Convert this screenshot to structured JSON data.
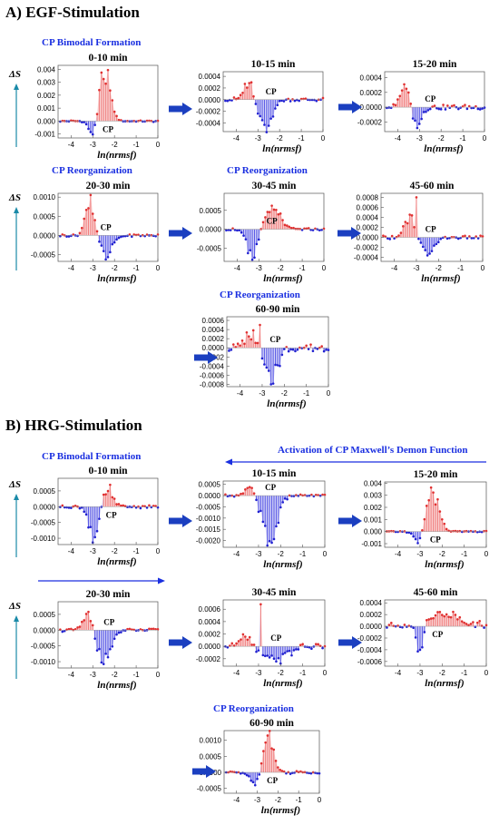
{
  "sections": [
    {
      "id": "egf",
      "title": "A) EGF-Stimulation"
    },
    {
      "id": "hrg",
      "title": "B) HRG-Stimulation"
    }
  ],
  "annotations": {
    "bimodal": "CP Bimodal Formation",
    "reorg": "CP  Reorganization",
    "maxwell": "Activation of CP Maxwell’s Demon Function",
    "delta_s": "ΔS",
    "x_axis": "ln(nrmsf)",
    "cp": "CP"
  },
  "colors": {
    "pos": "#f08080",
    "pos_fill": "#f6b3b3",
    "neg": "#5a5ae6",
    "neg_fill": "#b8b8f2",
    "accent": "#1a2fe0",
    "arrow": "#1b3fc0",
    "ds_arrow": "#1a8aa8"
  },
  "chart_data": [
    {
      "id": "egf-0-10",
      "type": "bar",
      "title": "0-10 min",
      "xlabel": "ln(nrmsf)",
      "ylabel": "ΔS",
      "xlim": [
        -4.6,
        0
      ],
      "ylim": [
        -0.0013,
        0.0043
      ],
      "yticks": [
        "-0.001",
        "0.000",
        "0.001",
        "0.002",
        "0.003",
        "0.004"
      ],
      "ytick_values": [
        -0.001,
        0,
        0.001,
        0.002,
        0.003,
        0.004
      ],
      "xticks": [
        "-4",
        "-3",
        "-2",
        "-1",
        "0"
      ],
      "profile": {
        "type": "bipolar",
        "neg_center": -3.0,
        "neg_amp": -0.0011,
        "neg_w": 0.25,
        "pos_center": -2.45,
        "pos_amp": 0.0037,
        "pos_w": 0.35,
        "tail": 5e-05
      },
      "cp_x": -2.8
    },
    {
      "id": "egf-10-15",
      "type": "bar",
      "title": "10-15 min",
      "xlabel": "ln(nrmsf)",
      "ylim": [
        -0.00055,
        0.00048
      ],
      "yticks": [
        "-0.0004",
        "-0.0002",
        "0.0000",
        "0.0002",
        "0.0004"
      ],
      "ytick_values": [
        -0.0004,
        -0.0002,
        0,
        0.0002,
        0.0004
      ],
      "xticks": [
        "-4",
        "-3",
        "-2",
        "-1",
        "0"
      ],
      "profile": {
        "type": "bipolar",
        "pos_center": -3.4,
        "pos_amp": 0.00035,
        "pos_w": 0.3,
        "neg_center": -2.7,
        "neg_amp": -0.0005,
        "neg_w": 0.45,
        "tail": 3e-05
      },
      "cp_x": -2.9
    },
    {
      "id": "egf-15-20",
      "type": "bar",
      "title": "15-20 min",
      "xlabel": "ln(nrmsf)",
      "ylim": [
        -0.00033,
        0.00048
      ],
      "yticks": [
        "-0.0002",
        "0.0000",
        "0.0002",
        "0.0004"
      ],
      "ytick_values": [
        -0.0002,
        0,
        0.0002,
        0.0004
      ],
      "xticks": [
        "-4",
        "-3",
        "-2",
        "-1",
        "0"
      ],
      "profile": {
        "type": "bipolar",
        "pos_center": -3.6,
        "pos_amp": 0.0004,
        "pos_w": 0.3,
        "neg_center": -3.2,
        "neg_amp": -0.0003,
        "neg_w": 0.35,
        "tail": 3e-05
      },
      "cp_x": -3.0
    },
    {
      "id": "egf-20-30",
      "type": "bar",
      "title": "20-30 min",
      "xlabel": "ln(nrmsf)",
      "ylim": [
        -0.00068,
        0.0011
      ],
      "yticks": [
        "-0.0005",
        "0.0000",
        "0.0005",
        "0.0010"
      ],
      "ytick_values": [
        -0.0005,
        0,
        0.0005,
        0.001
      ],
      "xticks": [
        "-4",
        "-3",
        "-2",
        "-1",
        "0"
      ],
      "profile": {
        "type": "bipolar",
        "pos_center": -3.1,
        "pos_amp": 0.0009,
        "pos_w": 0.3,
        "neg_center": -2.4,
        "neg_amp": -0.0005,
        "neg_w": 0.45,
        "tail": 3e-05
      },
      "cp_x": -2.9
    },
    {
      "id": "egf-30-45",
      "type": "bar",
      "title": "30-45 min",
      "xlabel": "ln(nrmsf)",
      "ylim": [
        -0.00085,
        0.00095
      ],
      "yticks": [
        "-0.0005",
        "0.0000",
        "0.0005"
      ],
      "ytick_values": [
        -0.0005,
        0,
        0.0005
      ],
      "xticks": [
        "-4",
        "-3",
        "-2",
        "-1",
        "0"
      ],
      "profile": {
        "type": "bipolar",
        "neg_center": -3.3,
        "neg_amp": -0.0008,
        "neg_w": 0.35,
        "pos_center": -2.4,
        "pos_amp": 0.0006,
        "pos_w": 0.5,
        "tail": 3e-05
      },
      "cp_x": -2.9
    },
    {
      "id": "egf-45-60",
      "type": "bar",
      "title": "45-60 min",
      "xlabel": "ln(nrmsf)",
      "ylim": [
        -0.00048,
        0.00088
      ],
      "yticks": [
        "-0.0004",
        "-0.0002",
        "0.0000",
        "0.0002",
        "0.0004",
        "0.0006",
        "0.0008"
      ],
      "ytick_values": [
        -0.0004,
        -0.0002,
        0,
        0.0002,
        0.0004,
        0.0006,
        0.0008
      ],
      "xticks": [
        "-4",
        "-3",
        "-2",
        "-1",
        "0"
      ],
      "profile": {
        "type": "bipolar",
        "pos_center": -3.3,
        "pos_amp": 0.0004,
        "pos_w": 0.35,
        "neg_center": -2.5,
        "neg_amp": -0.0003,
        "neg_w": 0.45,
        "tail": 3e-05,
        "spike_x": -3.0,
        "spike": 0.0008
      },
      "cp_x": -2.85
    },
    {
      "id": "egf-60-90",
      "type": "bar",
      "title": "60-90 min",
      "xlabel": "ln(nrmsf)",
      "ylim": [
        -0.00085,
        0.00068
      ],
      "yticks": [
        "-0.0008",
        "-0.0006",
        "-0.0004",
        "-0.0002",
        "0.0000",
        "0.0002",
        "0.0004",
        "0.0006"
      ],
      "ytick_values": [
        -0.0008,
        -0.0006,
        -0.0004,
        -0.0002,
        0,
        0.0002,
        0.0004,
        0.0006
      ],
      "xticks": [
        "-4",
        "-3",
        "-2",
        "-1",
        "0"
      ],
      "profile": {
        "type": "bipolar",
        "pos_center": -3.5,
        "pos_amp": 0.0003,
        "pos_w": 0.4,
        "neg_center": -2.6,
        "neg_amp": -0.0007,
        "neg_w": 0.4,
        "tail": 8e-05,
        "spike_x": -3.1,
        "spike": 0.0005
      },
      "cp_x": -2.9
    },
    {
      "id": "hrg-0-10",
      "type": "bar",
      "title": "0-10 min",
      "xlabel": "ln(nrmsf)",
      "ylim": [
        -0.0012,
        0.0009
      ],
      "yticks": [
        "-0.0010",
        "-0.0005",
        "0.0000",
        "0.0005"
      ],
      "ytick_values": [
        -0.001,
        -0.0005,
        0,
        0.0005
      ],
      "xticks": [
        "-4",
        "-3",
        "-2",
        "-1",
        "0"
      ],
      "profile": {
        "type": "bipolar",
        "neg_center": -2.95,
        "neg_amp": -0.001,
        "neg_w": 0.3,
        "pos_center": -2.3,
        "pos_amp": 0.0006,
        "pos_w": 0.3,
        "tail": 4e-05
      },
      "cp_x": -2.65
    },
    {
      "id": "hrg-10-15",
      "type": "bar",
      "title": "10-15 min",
      "xlabel": "ln(nrmsf)",
      "ylim": [
        -0.0023,
        0.00065
      ],
      "yticks": [
        "-0.0020",
        "-0.0015",
        "-0.0010",
        "-0.0005",
        "0.0000",
        "0.0005"
      ],
      "ytick_values": [
        -0.002,
        -0.0015,
        -0.001,
        -0.0005,
        0,
        0.0005
      ],
      "xticks": [
        "-4",
        "-3",
        "-2",
        "-1",
        "0"
      ],
      "profile": {
        "type": "bipolar",
        "pos_center": -3.4,
        "pos_amp": 0.0004,
        "pos_w": 0.3,
        "neg_center": -2.5,
        "neg_amp": -0.0021,
        "neg_w": 0.45,
        "tail": 5e-05
      },
      "cp_x": -2.95
    },
    {
      "id": "hrg-15-20",
      "type": "bar",
      "title": "15-20 min",
      "xlabel": "ln(nrmsf)",
      "ylim": [
        -0.0013,
        0.0041
      ],
      "yticks": [
        "-0.001",
        "0.000",
        "0.001",
        "0.002",
        "0.003",
        "0.004"
      ],
      "ytick_values": [
        -0.001,
        0,
        0.001,
        0.002,
        0.003,
        0.004
      ],
      "xticks": [
        "-4",
        "-3",
        "-2",
        "-1",
        "0"
      ],
      "profile": {
        "type": "bipolar",
        "neg_center": -3.0,
        "neg_amp": -0.0011,
        "neg_w": 0.3,
        "pos_center": -2.45,
        "pos_amp": 0.0037,
        "pos_w": 0.4,
        "tail": 5e-05
      },
      "cp_x": -2.8
    },
    {
      "id": "hrg-20-30",
      "type": "bar",
      "title": "20-30 min",
      "xlabel": "ln(nrmsf)",
      "ylim": [
        -0.0012,
        0.0009
      ],
      "yticks": [
        "-0.0010",
        "-0.0005",
        "0.0000",
        "0.0005"
      ],
      "ytick_values": [
        -0.001,
        -0.0005,
        0,
        0.0005
      ],
      "xticks": [
        "-4",
        "-3",
        "-2",
        "-1",
        "0"
      ],
      "profile": {
        "type": "bipolar",
        "pos_center": -3.2,
        "pos_amp": 0.0006,
        "pos_w": 0.3,
        "neg_center": -2.5,
        "neg_amp": -0.001,
        "neg_w": 0.45,
        "tail": 4e-05
      },
      "cp_x": -2.75
    },
    {
      "id": "hrg-30-45",
      "type": "bar",
      "title": "30-45 min",
      "xlabel": "ln(nrmsf)",
      "ylim": [
        -0.00032,
        0.00075
      ],
      "yticks": [
        "-0.0002",
        "0.0000",
        "0.0002",
        "0.0004",
        "0.0006"
      ],
      "ytick_values": [
        -0.0002,
        0,
        0.0002,
        0.0004,
        0.0006
      ],
      "xticks": [
        "-4",
        "-3",
        "-2",
        "-1",
        "0"
      ],
      "profile": {
        "type": "bipolar",
        "pos_center": -3.6,
        "pos_amp": 0.0002,
        "pos_w": 0.4,
        "neg_center": -2.3,
        "neg_amp": -0.0002,
        "neg_w": 0.8,
        "tail": 5e-05,
        "spike_x": -2.9,
        "spike": 0.00068
      },
      "cp_x": -2.7
    },
    {
      "id": "hrg-45-60",
      "type": "bar",
      "title": "45-60 min",
      "xlabel": "ln(nrmsf)",
      "ylim": [
        -0.00068,
        0.00045
      ],
      "yticks": [
        "-0.0006",
        "-0.0004",
        "-0.0002",
        "0.0000",
        "0.0002",
        "0.0004"
      ],
      "ytick_values": [
        -0.0006,
        -0.0004,
        -0.0002,
        0,
        0.0002,
        0.0004
      ],
      "xticks": [
        "-4",
        "-3",
        "-2",
        "-1",
        "0"
      ],
      "profile": {
        "type": "bipolar",
        "neg_center": -3.0,
        "neg_amp": -0.0006,
        "neg_w": 0.2,
        "pos_center": -2.0,
        "pos_amp": 0.0002,
        "pos_w": 1.2,
        "tail": 5e-05
      },
      "cp_x": -2.7
    },
    {
      "id": "hrg-60-90",
      "type": "bar",
      "title": "60-90 min",
      "xlabel": "ln(nrmsf)",
      "ylim": [
        -0.00065,
        0.0013
      ],
      "yticks": [
        "-0.0005",
        "0.0000",
        "0.0005",
        "0.0010"
      ],
      "ytick_values": [
        -0.0005,
        0,
        0.0005,
        0.001
      ],
      "xticks": [
        "-4",
        "-3",
        "-2",
        "-1",
        "0"
      ],
      "profile": {
        "type": "bipolar",
        "neg_center": -3.1,
        "neg_amp": -0.0004,
        "neg_w": 0.3,
        "pos_center": -2.45,
        "pos_amp": 0.0011,
        "pos_w": 0.35,
        "tail": 4e-05
      },
      "cp_x": -2.8
    }
  ]
}
